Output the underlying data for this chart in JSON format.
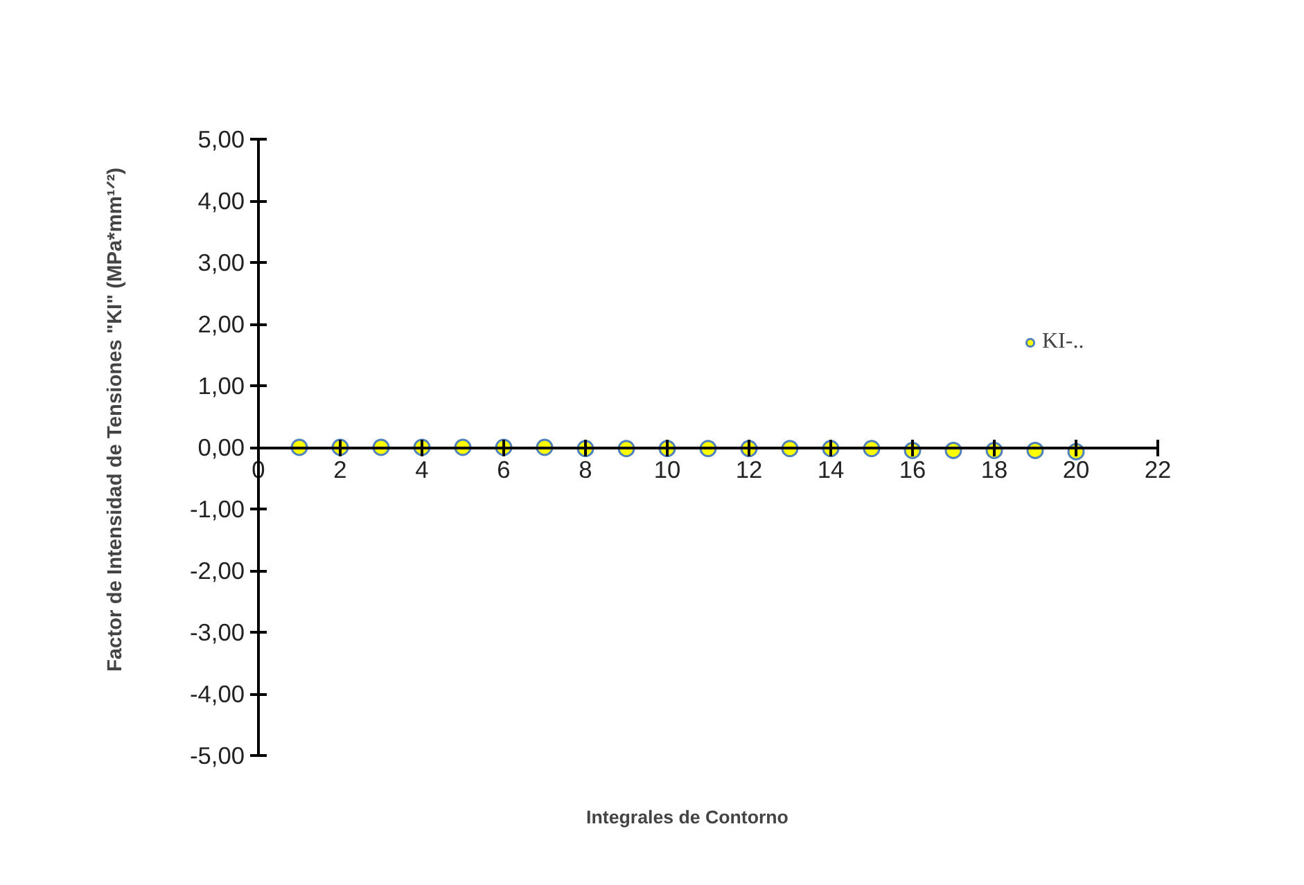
{
  "chart_data": {
    "type": "scatter",
    "xlabel": "Integrales de Contorno",
    "ylabel": "Factor de Intensidad de Tensiones \"KI\" (MPa*mm¹ᐟ²)",
    "x": [
      1,
      2,
      3,
      4,
      5,
      6,
      7,
      8,
      9,
      10,
      11,
      12,
      13,
      14,
      15,
      16,
      17,
      18,
      19,
      20
    ],
    "series": [
      {
        "name": "KI-..",
        "color": "#ffff00",
        "values": [
          0.0,
          0.0,
          0.0,
          0.0,
          0.0,
          0.0,
          0.0,
          -0.02,
          -0.02,
          -0.02,
          -0.02,
          -0.02,
          -0.02,
          -0.02,
          -0.02,
          -0.05,
          -0.05,
          -0.05,
          -0.05,
          -0.07
        ]
      }
    ],
    "xlim": [
      0,
      22
    ],
    "xticks": [
      0,
      2,
      4,
      6,
      8,
      10,
      12,
      14,
      16,
      18,
      20,
      22
    ],
    "ylim": [
      -5,
      5
    ],
    "yticks": [
      {
        "value": -5,
        "label": "-5,00"
      },
      {
        "value": -4,
        "label": "-4,00"
      },
      {
        "value": -3,
        "label": "-3,00"
      },
      {
        "value": -2,
        "label": "-2,00"
      },
      {
        "value": -1,
        "label": "-1,00"
      },
      {
        "value": 0,
        "label": "0,00"
      },
      {
        "value": 1,
        "label": "1,00"
      },
      {
        "value": 2,
        "label": "2,00"
      },
      {
        "value": 3,
        "label": "3,00"
      },
      {
        "value": 4,
        "label": "4,00"
      },
      {
        "value": 5,
        "label": "5,00"
      }
    ],
    "grid": false,
    "legend": "right",
    "marker": "circle"
  }
}
